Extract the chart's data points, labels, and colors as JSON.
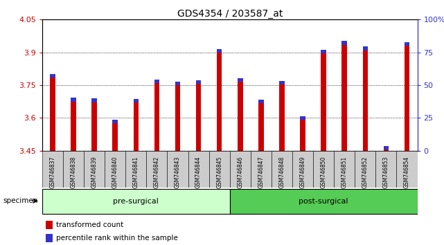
{
  "title": "GDS4354 / 203587_at",
  "samples": [
    "GSM746837",
    "GSM746838",
    "GSM746839",
    "GSM746840",
    "GSM746841",
    "GSM746842",
    "GSM746843",
    "GSM746844",
    "GSM746845",
    "GSM746846",
    "GSM746847",
    "GSM746848",
    "GSM746849",
    "GSM746850",
    "GSM746851",
    "GSM746852",
    "GSM746853",
    "GSM746854"
  ],
  "red_values": [
    3.785,
    3.675,
    3.672,
    3.575,
    3.67,
    3.76,
    3.75,
    3.755,
    3.898,
    3.765,
    3.668,
    3.752,
    3.592,
    3.895,
    3.935,
    3.91,
    3.455,
    3.93
  ],
  "blue_percentiles": [
    10,
    10,
    10,
    10,
    10,
    10,
    10,
    15,
    15,
    10,
    10,
    10,
    15,
    15,
    15,
    15,
    5,
    15
  ],
  "ymin": 3.45,
  "ymax": 4.05,
  "yticks": [
    3.45,
    3.6,
    3.75,
    3.9,
    4.05
  ],
  "ytick_labels": [
    "3.45",
    "3.6",
    "3.75",
    "3.9",
    "4.05"
  ],
  "right_yticks": [
    0,
    25,
    50,
    75,
    100
  ],
  "right_ytick_labels": [
    "0",
    "25",
    "50",
    "75",
    "100%"
  ],
  "pre_surgical_count": 9,
  "post_surgical_count": 9,
  "pre_surgical_label": "pre-surgical",
  "post_surgical_label": "post-surgical",
  "specimen_label": "specimen",
  "legend_red": "transformed count",
  "legend_blue": "percentile rank within the sample",
  "red_color": "#cc0000",
  "blue_color": "#3333cc",
  "cell_bg": "#cccccc",
  "pre_bg": "#ccffcc",
  "post_bg": "#55cc55",
  "axis_label_color_left": "#cc0000",
  "axis_label_color_right": "#3333cc",
  "thin_bar_width": 0.25
}
